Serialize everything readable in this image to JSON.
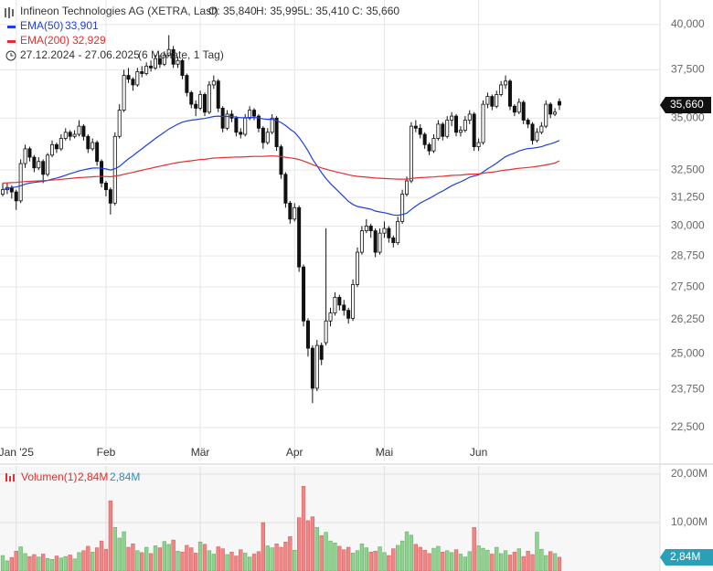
{
  "chart_data": {
    "type": "candlestick",
    "title": "Infineon Technologies AG (XETRA, Last)",
    "ohlc_labels": [
      "O: 35,840",
      "H: 35,995",
      "L: 35,410",
      "C: 35,660"
    ],
    "date_range": "27.12.2024 - 27.06.2025",
    "period": "(6 Monate, 1 Tag)",
    "log_scale": true,
    "grid": true,
    "up_color": "#ffffff",
    "down_color": "#111111",
    "last_label": "35,660",
    "ylim": [
      21440,
      41000
    ],
    "yticks": [
      {
        "value": 22500,
        "label": "22,500"
      },
      {
        "value": 23750,
        "label": "23,750"
      },
      {
        "value": 25000,
        "label": "25,000"
      },
      {
        "value": 26250,
        "label": "26,250"
      },
      {
        "value": 27500,
        "label": "27,500"
      },
      {
        "value": 28750,
        "label": "28,750"
      },
      {
        "value": 30000,
        "label": "30,000"
      },
      {
        "value": 31250,
        "label": "31,250"
      },
      {
        "value": 32500,
        "label": "32,500"
      },
      {
        "value": 35000,
        "label": "35,000"
      },
      {
        "value": 37500,
        "label": "37,500"
      },
      {
        "value": 40000,
        "label": "40,000"
      }
    ],
    "categories": [
      null,
      null,
      null,
      "Jan '25",
      null,
      null,
      null,
      null,
      null,
      null,
      null,
      null,
      null,
      null,
      null,
      null,
      null,
      null,
      null,
      null,
      null,
      null,
      null,
      "Feb",
      null,
      null,
      null,
      null,
      null,
      null,
      null,
      null,
      null,
      null,
      null,
      null,
      null,
      null,
      null,
      null,
      null,
      null,
      null,
      null,
      "Mär",
      null,
      null,
      null,
      null,
      null,
      null,
      null,
      null,
      null,
      null,
      null,
      null,
      null,
      null,
      null,
      null,
      null,
      null,
      null,
      null,
      "Apr",
      null,
      null,
      null,
      null,
      null,
      null,
      null,
      null,
      null,
      null,
      null,
      null,
      null,
      null,
      null,
      null,
      null,
      null,
      null,
      "Mai",
      null,
      null,
      null,
      null,
      null,
      null,
      null,
      null,
      null,
      null,
      null,
      null,
      null,
      null,
      null,
      null,
      null,
      null,
      null,
      null,
      "Jun",
      null,
      null,
      null,
      null,
      null,
      null,
      null,
      null,
      null,
      null,
      null,
      null,
      null,
      null,
      null,
      null,
      null,
      null
    ],
    "candles": [
      [
        31400,
        31900,
        31300,
        31600
      ],
      [
        31600,
        31900,
        31400,
        31700
      ],
      [
        31700,
        31800,
        31200,
        31500
      ],
      [
        31500,
        31600,
        30700,
        31100
      ],
      [
        31100,
        33000,
        31000,
        32800
      ],
      [
        32800,
        33700,
        32600,
        33500
      ],
      [
        33500,
        33600,
        32900,
        33100
      ],
      [
        33100,
        33200,
        32400,
        32600
      ],
      [
        32600,
        33100,
        32500,
        32900
      ],
      [
        32900,
        33000,
        31900,
        32300
      ],
      [
        32300,
        33300,
        32200,
        33200
      ],
      [
        33200,
        33900,
        33100,
        33700
      ],
      [
        33700,
        33800,
        33300,
        33500
      ],
      [
        33500,
        34200,
        33400,
        34000
      ],
      [
        34000,
        34500,
        33900,
        34300
      ],
      [
        34300,
        34400,
        33900,
        34100
      ],
      [
        34100,
        34400,
        34000,
        34200
      ],
      [
        34200,
        34900,
        34100,
        34600
      ],
      [
        34600,
        34700,
        33900,
        34100
      ],
      [
        34100,
        34200,
        33300,
        33500
      ],
      [
        33500,
        34000,
        33400,
        33800
      ],
      [
        33800,
        33900,
        32700,
        32900
      ],
      [
        32900,
        33000,
        31700,
        31900
      ],
      [
        31900,
        32000,
        31300,
        31600
      ],
      [
        31600,
        31700,
        30500,
        31000
      ],
      [
        31000,
        34300,
        30900,
        34100
      ],
      [
        34100,
        35700,
        34000,
        35400
      ],
      [
        35400,
        37500,
        35300,
        37200
      ],
      [
        37200,
        37600,
        36800,
        37000
      ],
      [
        37000,
        37100,
        36400,
        36700
      ],
      [
        36700,
        37600,
        36600,
        37400
      ],
      [
        37400,
        37700,
        37100,
        37300
      ],
      [
        37300,
        37900,
        37200,
        37700
      ],
      [
        37700,
        38000,
        37400,
        37600
      ],
      [
        37600,
        38300,
        37500,
        38100
      ],
      [
        38100,
        38300,
        37600,
        37800
      ],
      [
        37800,
        38500,
        37700,
        38300
      ],
      [
        38300,
        39400,
        38200,
        38600
      ],
      [
        38600,
        38800,
        37600,
        37800
      ],
      [
        37800,
        38200,
        37600,
        38000
      ],
      [
        38000,
        38100,
        37000,
        37200
      ],
      [
        37200,
        37300,
        36100,
        36300
      ],
      [
        36300,
        36400,
        35500,
        35700
      ],
      [
        35700,
        35900,
        35100,
        35500
      ],
      [
        35500,
        36400,
        35400,
        36200
      ],
      [
        36200,
        36300,
        35100,
        35300
      ],
      [
        35300,
        36900,
        35200,
        36700
      ],
      [
        36700,
        37200,
        36500,
        36900
      ],
      [
        36900,
        37000,
        35300,
        35500
      ],
      [
        35500,
        35600,
        34300,
        34500
      ],
      [
        34500,
        35400,
        34400,
        35200
      ],
      [
        35200,
        35400,
        34800,
        35000
      ],
      [
        35000,
        35100,
        34100,
        34300
      ],
      [
        34300,
        34500,
        34000,
        34200
      ],
      [
        34200,
        35200,
        34100,
        35000
      ],
      [
        35000,
        35600,
        34900,
        35400
      ],
      [
        35400,
        35500,
        34900,
        35100
      ],
      [
        35100,
        35200,
        34300,
        34500
      ],
      [
        34500,
        34600,
        33500,
        33800
      ],
      [
        33800,
        34500,
        33700,
        34300
      ],
      [
        34300,
        35200,
        34200,
        35000
      ],
      [
        35000,
        35100,
        33400,
        33600
      ],
      [
        33600,
        33700,
        32100,
        32300
      ],
      [
        32300,
        32400,
        30800,
        31000
      ],
      [
        31000,
        31100,
        30100,
        30300
      ],
      [
        30300,
        31000,
        30200,
        30800
      ],
      [
        30800,
        30900,
        28100,
        28300
      ],
      [
        28300,
        28400,
        26000,
        26200
      ],
      [
        26200,
        26300,
        24900,
        25200
      ],
      [
        25200,
        25300,
        23300,
        23800
      ],
      [
        23800,
        25500,
        23700,
        25300
      ],
      [
        25300,
        25400,
        24600,
        24800
      ],
      [
        25400,
        29900,
        25300,
        26200
      ],
      [
        26200,
        26700,
        26000,
        26500
      ],
      [
        26500,
        27300,
        26400,
        27100
      ],
      [
        27100,
        27200,
        26600,
        26800
      ],
      [
        26800,
        27000,
        26400,
        26600
      ],
      [
        26600,
        26700,
        26100,
        26300
      ],
      [
        26300,
        27800,
        26200,
        27600
      ],
      [
        27600,
        29100,
        27500,
        28900
      ],
      [
        28900,
        30000,
        28800,
        29800
      ],
      [
        29800,
        30300,
        29700,
        30000
      ],
      [
        30000,
        30100,
        29500,
        29800
      ],
      [
        29800,
        29900,
        28700,
        28900
      ],
      [
        28900,
        29900,
        28800,
        29700
      ],
      [
        29700,
        30200,
        29500,
        29900
      ],
      [
        29900,
        30000,
        29300,
        29500
      ],
      [
        29500,
        29600,
        29100,
        29300
      ],
      [
        29300,
        30400,
        29200,
        30200
      ],
      [
        30200,
        31600,
        30100,
        31400
      ],
      [
        31400,
        32200,
        31300,
        32000
      ],
      [
        32000,
        34800,
        31900,
        34600
      ],
      [
        34600,
        34900,
        34300,
        34500
      ],
      [
        34500,
        34700,
        34000,
        34200
      ],
      [
        34200,
        34300,
        33500,
        33700
      ],
      [
        33700,
        33800,
        33200,
        33400
      ],
      [
        33400,
        34200,
        33300,
        34000
      ],
      [
        34000,
        34900,
        33900,
        34700
      ],
      [
        34700,
        34800,
        33900,
        34100
      ],
      [
        34100,
        35100,
        34000,
        34900
      ],
      [
        34900,
        35300,
        34600,
        35100
      ],
      [
        35100,
        35200,
        34100,
        34300
      ],
      [
        34300,
        34600,
        34100,
        34400
      ],
      [
        34400,
        35100,
        34300,
        34900
      ],
      [
        34900,
        35400,
        34700,
        35200
      ],
      [
        35200,
        35300,
        33400,
        33600
      ],
      [
        33600,
        34000,
        33400,
        33800
      ],
      [
        33800,
        35900,
        33700,
        35700
      ],
      [
        35700,
        36300,
        35500,
        36100
      ],
      [
        36100,
        36200,
        35400,
        35600
      ],
      [
        35600,
        36400,
        35500,
        36200
      ],
      [
        36200,
        36900,
        36100,
        36700
      ],
      [
        36700,
        37200,
        36500,
        36900
      ],
      [
        36900,
        37000,
        35400,
        35600
      ],
      [
        35600,
        35700,
        35100,
        35300
      ],
      [
        35300,
        36000,
        35200,
        35800
      ],
      [
        35800,
        35900,
        34700,
        34900
      ],
      [
        34900,
        35000,
        34500,
        34700
      ],
      [
        34700,
        34800,
        33700,
        33900
      ],
      [
        33900,
        34500,
        33800,
        34300
      ],
      [
        34300,
        34800,
        34200,
        34600
      ],
      [
        34600,
        35900,
        34500,
        35700
      ],
      [
        35700,
        35800,
        35000,
        35200
      ],
      [
        35200,
        35500,
        35100,
        35300
      ],
      [
        35840,
        35995,
        35410,
        35660
      ]
    ],
    "series": [
      {
        "name": "EMA(50)",
        "color": "#1f3fe0",
        "value_label": "33,901",
        "values": [
          31600,
          31650,
          31700,
          31720,
          31780,
          31850,
          31900,
          31930,
          31960,
          31980,
          32020,
          32080,
          32130,
          32190,
          32260,
          32330,
          32390,
          32460,
          32510,
          32550,
          32590,
          32600,
          32580,
          32550,
          32500,
          32560,
          32670,
          32850,
          33020,
          33170,
          33340,
          33500,
          33670,
          33830,
          34000,
          34150,
          34300,
          34460,
          34580,
          34700,
          34800,
          34860,
          34900,
          34920,
          34960,
          34980,
          35030,
          35080,
          35100,
          35080,
          35080,
          35080,
          35050,
          35020,
          35020,
          35030,
          35030,
          35010,
          34960,
          34940,
          34940,
          34880,
          34780,
          34630,
          34450,
          34300,
          34050,
          33740,
          33400,
          33010,
          32700,
          32380,
          32110,
          31880,
          31680,
          31480,
          31280,
          31080,
          30940,
          30850,
          30810,
          30770,
          30730,
          30650,
          30610,
          30580,
          30530,
          30480,
          30470,
          30500,
          30560,
          30720,
          30870,
          31000,
          31110,
          31210,
          31320,
          31440,
          31540,
          31660,
          31780,
          31870,
          31960,
          32060,
          32170,
          32220,
          32280,
          32410,
          32560,
          32680,
          32820,
          32980,
          33130,
          33220,
          33300,
          33400,
          33460,
          33510,
          33530,
          33560,
          33600,
          33680,
          33740,
          33810,
          33901
        ]
      },
      {
        "name": "EMA(200)",
        "color": "#e03030",
        "value_label": "32,929",
        "values": [
          31900,
          31910,
          31920,
          31930,
          31950,
          31970,
          31980,
          31990,
          32000,
          32010,
          32020,
          32040,
          32050,
          32070,
          32090,
          32110,
          32130,
          32150,
          32160,
          32170,
          32190,
          32200,
          32200,
          32200,
          32190,
          32220,
          32250,
          32300,
          32350,
          32390,
          32440,
          32490,
          32540,
          32580,
          32630,
          32680,
          32720,
          32770,
          32810,
          32850,
          32880,
          32910,
          32930,
          32960,
          32990,
          33000,
          33030,
          33060,
          33070,
          33080,
          33090,
          33100,
          33110,
          33110,
          33120,
          33130,
          33140,
          33140,
          33140,
          33150,
          33160,
          33150,
          33130,
          33100,
          33070,
          33040,
          32990,
          32920,
          32840,
          32750,
          32680,
          32600,
          32540,
          32480,
          32430,
          32380,
          32330,
          32280,
          32240,
          32210,
          32190,
          32170,
          32150,
          32130,
          32120,
          32110,
          32100,
          32090,
          32080,
          32080,
          32080,
          32110,
          32130,
          32150,
          32160,
          32170,
          32180,
          32200,
          32210,
          32230,
          32250,
          32260,
          32270,
          32290,
          32310,
          32310,
          32320,
          32350,
          32380,
          32400,
          32430,
          32470,
          32500,
          32520,
          32550,
          32580,
          32600,
          32620,
          32640,
          32670,
          32700,
          32740,
          32780,
          32830,
          32929
        ]
      }
    ],
    "volume": {
      "name": "Volumen(1)",
      "legend_labels": [
        "2,84M",
        "2,84M"
      ],
      "legend_colors": [
        "#e03030",
        "#2a8fc0"
      ],
      "last_label": "2,84M",
      "up_color": "#8fd18f",
      "down_color": "#f08585",
      "ylim": [
        0,
        20.75
      ],
      "yticks": [
        {
          "value": 10,
          "label": "10,00M"
        },
        {
          "value": 20,
          "label": "20,00M"
        }
      ],
      "values": [
        3.2,
        2.1,
        2.8,
        4.1,
        5.0,
        3.6,
        3.0,
        3.4,
        2.9,
        3.5,
        2.6,
        2.4,
        3.1,
        2.7,
        3.0,
        3.3,
        2.5,
        3.8,
        4.2,
        5.1,
        3.9,
        4.8,
        6.2,
        4.5,
        14.5,
        9.0,
        6.8,
        8.1,
        4.9,
        5.6,
        4.2,
        3.8,
        4.9,
        3.6,
        5.2,
        4.8,
        6.1,
        5.5,
        6.4,
        4.1,
        3.9,
        5.3,
        4.8,
        3.7,
        6.0,
        5.5,
        4.2,
        3.5,
        5.0,
        4.6,
        3.4,
        3.9,
        3.1,
        4.4,
        3.7,
        2.9,
        3.5,
        4.0,
        10.0,
        5.2,
        4.8,
        5.6,
        4.9,
        6.0,
        7.1,
        4.3,
        11.0,
        17.5,
        10.4,
        11.2,
        9.0,
        7.3,
        8.0,
        6.2,
        5.8,
        5.1,
        4.4,
        4.9,
        3.7,
        4.2,
        5.6,
        4.8,
        3.9,
        4.1,
        5.0,
        3.8,
        3.2,
        4.6,
        5.3,
        6.2,
        8.1,
        7.4,
        5.5,
        4.9,
        4.3,
        3.6,
        4.7,
        5.1,
        3.9,
        4.2,
        3.8,
        4.4,
        3.5,
        2.9,
        4.0,
        9.0,
        5.2,
        4.7,
        4.3,
        3.5,
        4.9,
        3.6,
        4.2,
        3.3,
        3.9,
        4.6,
        3.0,
        4.1,
        3.4,
        8.0,
        4.5,
        3.2,
        4.0,
        3.6,
        2.84
      ]
    }
  }
}
